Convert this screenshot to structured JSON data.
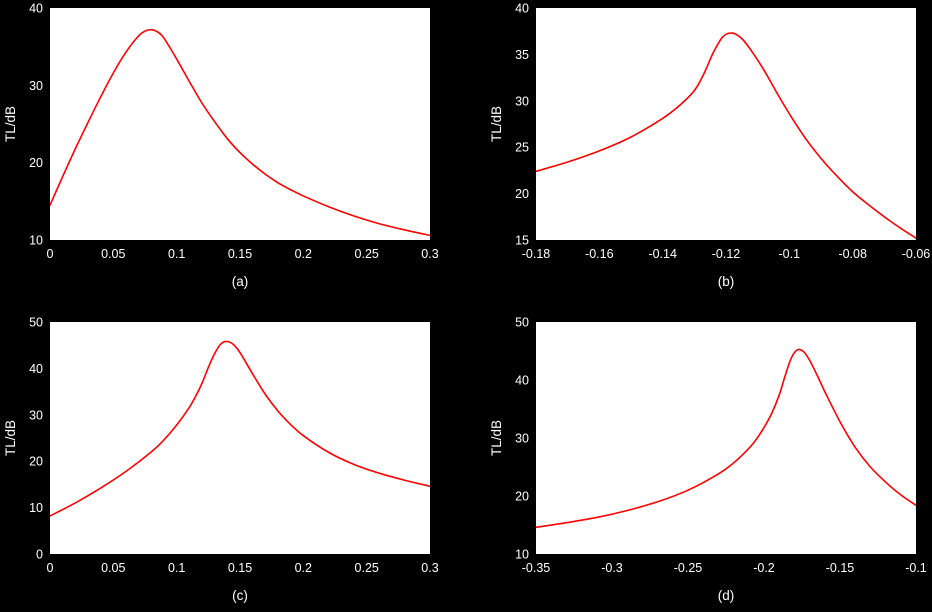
{
  "figure": {
    "background_color": "#000000",
    "plot_background_color": "#ffffff",
    "text_color": "#ffffff",
    "line_color": "#ff0000"
  },
  "chart_data": [
    {
      "id": "a",
      "type": "line",
      "caption": "(a)",
      "ylabel": "TL/dB",
      "xlabel": "",
      "xlim": [
        0,
        0.3
      ],
      "ylim": [
        10,
        40
      ],
      "xticks": [
        0,
        0.05,
        0.1,
        0.15,
        0.2,
        0.25,
        0.3
      ],
      "xtick_labels": [
        "0",
        "0.05",
        "0.1",
        "0.15",
        "0.2",
        "0.25",
        "0.3"
      ],
      "yticks": [
        10,
        20,
        30,
        40
      ],
      "ytick_labels": [
        "10",
        "20",
        "30",
        "40"
      ],
      "grid": false,
      "legend": null,
      "series": [
        {
          "name": "TL",
          "x": [
            0,
            0.01,
            0.02,
            0.03,
            0.04,
            0.05,
            0.06,
            0.07,
            0.075,
            0.08,
            0.085,
            0.09,
            0.1,
            0.11,
            0.12,
            0.13,
            0.14,
            0.15,
            0.16,
            0.17,
            0.18,
            0.19,
            0.2,
            0.22,
            0.24,
            0.26,
            0.28,
            0.3
          ],
          "y": [
            14.5,
            18.2,
            21.8,
            25.2,
            28.5,
            31.6,
            34.3,
            36.4,
            37.0,
            37.2,
            36.9,
            36.1,
            33.4,
            30.5,
            27.7,
            25.3,
            23.1,
            21.3,
            19.8,
            18.5,
            17.4,
            16.5,
            15.7,
            14.3,
            13.1,
            12.1,
            11.3,
            10.6
          ]
        }
      ]
    },
    {
      "id": "b",
      "type": "line",
      "caption": "(b)",
      "ylabel": "TL/dB",
      "xlabel": "",
      "xlim": [
        -0.18,
        -0.06
      ],
      "ylim": [
        15,
        40
      ],
      "xticks": [
        -0.18,
        -0.16,
        -0.14,
        -0.12,
        -0.1,
        -0.08,
        -0.06
      ],
      "xtick_labels": [
        "-0.18",
        "-0.16",
        "-0.14",
        "-0.12",
        "-0.1",
        "-0.08",
        "-0.06"
      ],
      "yticks": [
        15,
        20,
        25,
        30,
        35,
        40
      ],
      "ytick_labels": [
        "15",
        "20",
        "25",
        "30",
        "35",
        "40"
      ],
      "grid": false,
      "legend": null,
      "series": [
        {
          "name": "TL",
          "x": [
            -0.18,
            -0.17,
            -0.16,
            -0.15,
            -0.14,
            -0.135,
            -0.13,
            -0.127,
            -0.124,
            -0.121,
            -0.118,
            -0.115,
            -0.112,
            -0.108,
            -0.104,
            -0.1,
            -0.095,
            -0.09,
            -0.085,
            -0.08,
            -0.075,
            -0.07,
            -0.065,
            -0.06
          ],
          "y": [
            22.4,
            23.4,
            24.6,
            26.1,
            28.1,
            29.4,
            31.1,
            32.9,
            35.2,
            36.9,
            37.3,
            36.7,
            35.4,
            33.3,
            30.9,
            28.6,
            26.0,
            23.8,
            21.9,
            20.2,
            18.8,
            17.5,
            16.3,
            15.2
          ]
        }
      ]
    },
    {
      "id": "c",
      "type": "line",
      "caption": "(c)",
      "ylabel": "TL/dB",
      "xlabel": "",
      "xlim": [
        0,
        0.3
      ],
      "ylim": [
        0,
        50
      ],
      "xticks": [
        0,
        0.05,
        0.1,
        0.15,
        0.2,
        0.25,
        0.3
      ],
      "xtick_labels": [
        "0",
        "0.05",
        "0.1",
        "0.15",
        "0.2",
        "0.25",
        "0.3"
      ],
      "yticks": [
        0,
        10,
        20,
        30,
        40,
        50
      ],
      "ytick_labels": [
        "0",
        "10",
        "20",
        "30",
        "40",
        "50"
      ],
      "grid": false,
      "legend": null,
      "series": [
        {
          "name": "TL",
          "x": [
            0,
            0.02,
            0.04,
            0.06,
            0.08,
            0.09,
            0.1,
            0.11,
            0.115,
            0.12,
            0.125,
            0.13,
            0.135,
            0.14,
            0.145,
            0.15,
            0.16,
            0.17,
            0.18,
            0.19,
            0.2,
            0.22,
            0.24,
            0.26,
            0.28,
            0.3
          ],
          "y": [
            8.2,
            11.0,
            14.2,
            17.8,
            22.0,
            24.6,
            27.8,
            31.6,
            34.0,
            36.8,
            40.2,
            43.2,
            45.3,
            45.8,
            45.1,
            43.4,
            38.8,
            34.4,
            30.8,
            27.9,
            25.5,
            21.9,
            19.3,
            17.4,
            15.9,
            14.6
          ]
        }
      ]
    },
    {
      "id": "d",
      "type": "line",
      "caption": "(d)",
      "ylabel": "TL/dB",
      "xlabel": "",
      "xlim": [
        -0.35,
        -0.1
      ],
      "ylim": [
        10,
        50
      ],
      "xticks": [
        -0.35,
        -0.3,
        -0.25,
        -0.2,
        -0.15,
        -0.1
      ],
      "xtick_labels": [
        "-0.35",
        "-0.3",
        "-0.25",
        "-0.2",
        "-0.15",
        "-0.1"
      ],
      "yticks": [
        10,
        20,
        30,
        40,
        50
      ],
      "ytick_labels": [
        "10",
        "20",
        "30",
        "40",
        "50"
      ],
      "grid": false,
      "legend": null,
      "series": [
        {
          "name": "TL",
          "x": [
            -0.35,
            -0.33,
            -0.31,
            -0.29,
            -0.27,
            -0.25,
            -0.23,
            -0.22,
            -0.21,
            -0.205,
            -0.2,
            -0.195,
            -0.19,
            -0.186,
            -0.182,
            -0.178,
            -0.174,
            -0.17,
            -0.165,
            -0.16,
            -0.15,
            -0.14,
            -0.13,
            -0.12,
            -0.11,
            -0.1
          ],
          "y": [
            14.6,
            15.4,
            16.3,
            17.5,
            19.0,
            21.0,
            23.8,
            25.7,
            28.2,
            29.8,
            31.8,
            34.2,
            37.4,
            40.8,
            43.8,
            45.2,
            44.9,
            43.4,
            40.8,
            38.0,
            32.8,
            28.4,
            25.0,
            22.4,
            20.2,
            18.4
          ]
        }
      ]
    }
  ]
}
